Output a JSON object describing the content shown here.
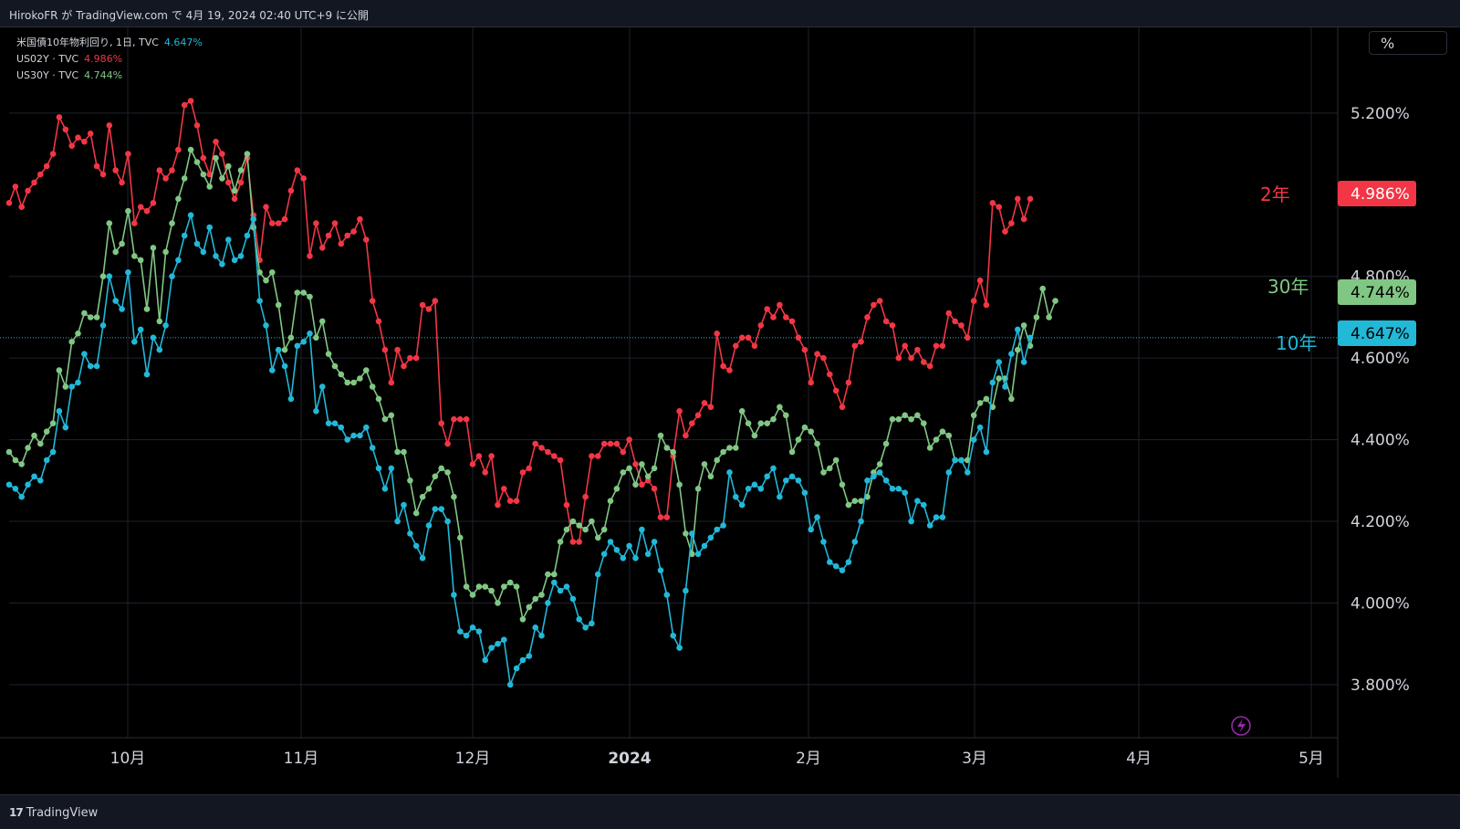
{
  "header": {
    "title": "HirokoFR が TradingView.com で 4月 19, 2024 02:40 UTC+9 に公開"
  },
  "footer": {
    "logo_mark": "17",
    "logo_text": "TradingView"
  },
  "legend": [
    {
      "name": "米国債10年物利回り, 1日, TVC",
      "value": "4.647%",
      "color": "#22b8d8"
    },
    {
      "name": "US02Y · TVC",
      "value": "4.986%",
      "color": "#f23645"
    },
    {
      "name": "US30Y · TVC",
      "value": "4.744%",
      "color": "#81c784"
    }
  ],
  "axis": {
    "unit_label": "%",
    "y_ticks": [
      "5.200%",
      "4.800%",
      "4.600%",
      "4.400%",
      "4.200%",
      "4.000%",
      "3.800%"
    ],
    "x_ticks": [
      "10月",
      "11月",
      "12月",
      "2024",
      "2月",
      "3月",
      "4月",
      "5月"
    ]
  },
  "chart_data": {
    "type": "line",
    "ylabel": "%",
    "ylim": [
      3.67,
      5.41
    ],
    "x_tick_labels": [
      "10月",
      "11月",
      "12月",
      "2024",
      "2月",
      "3月",
      "4月",
      "5月"
    ],
    "series": [
      {
        "name": "US02Y · TVC",
        "chart_label": "2年",
        "last_value": "4.986%",
        "color": "#f23645",
        "values": [
          4.98,
          5.02,
          4.97,
          5.01,
          5.03,
          5.05,
          5.07,
          5.1,
          5.19,
          5.16,
          5.12,
          5.14,
          5.13,
          5.15,
          5.07,
          5.05,
          5.17,
          5.06,
          5.03,
          5.1,
          4.93,
          4.97,
          4.96,
          4.98,
          5.06,
          5.04,
          5.06,
          5.11,
          5.22,
          5.23,
          5.17,
          5.09,
          5.05,
          5.13,
          5.1,
          5.03,
          4.99,
          5.03,
          5.09,
          4.95,
          4.84,
          4.97,
          4.93,
          4.93,
          4.94,
          5.01,
          5.06,
          5.04,
          4.85,
          4.93,
          4.87,
          4.9,
          4.93,
          4.88,
          4.9,
          4.91,
          4.94,
          4.89,
          4.74,
          4.69,
          4.62,
          4.54,
          4.62,
          4.58,
          4.6,
          4.6,
          4.73,
          4.72,
          4.74,
          4.44,
          4.39,
          4.45,
          4.45,
          4.45,
          4.34,
          4.36,
          4.32,
          4.36,
          4.24,
          4.28,
          4.25,
          4.25,
          4.32,
          4.33,
          4.39,
          4.38,
          4.37,
          4.36,
          4.35,
          4.24,
          4.15,
          4.15,
          4.26,
          4.36,
          4.36,
          4.39,
          4.39,
          4.39,
          4.37,
          4.4,
          4.34,
          4.29,
          4.3,
          4.28,
          4.21,
          4.21,
          4.36,
          4.47,
          4.41,
          4.44,
          4.46,
          4.49,
          4.48,
          4.66,
          4.58,
          4.57,
          4.63,
          4.65,
          4.65,
          4.63,
          4.68,
          4.72,
          4.7,
          4.73,
          4.7,
          4.69,
          4.65,
          4.62,
          4.54,
          4.61,
          4.6,
          4.56,
          4.52,
          4.48,
          4.54,
          4.63,
          4.64,
          4.7,
          4.73,
          4.74,
          4.69,
          4.68,
          4.6,
          4.63,
          4.6,
          4.62,
          4.59,
          4.58,
          4.63,
          4.63,
          4.71,
          4.69,
          4.68,
          4.65,
          4.74,
          4.79,
          4.73,
          4.98,
          4.97,
          4.91,
          4.93,
          4.99,
          4.94,
          4.99
        ]
      },
      {
        "name": "US30Y · TVC",
        "chart_label": "30年",
        "last_value": "4.744%",
        "color": "#81c784",
        "values": [
          4.37,
          4.35,
          4.34,
          4.38,
          4.41,
          4.39,
          4.42,
          4.44,
          4.57,
          4.53,
          4.64,
          4.66,
          4.71,
          4.7,
          4.7,
          4.8,
          4.93,
          4.86,
          4.88,
          4.96,
          4.85,
          4.84,
          4.72,
          4.87,
          4.69,
          4.86,
          4.93,
          4.99,
          5.04,
          5.11,
          5.08,
          5.05,
          5.02,
          5.09,
          5.04,
          5.07,
          5.01,
          5.06,
          5.1,
          4.92,
          4.81,
          4.79,
          4.81,
          4.73,
          4.62,
          4.65,
          4.76,
          4.76,
          4.75,
          4.65,
          4.69,
          4.61,
          4.58,
          4.56,
          4.54,
          4.54,
          4.55,
          4.57,
          4.53,
          4.5,
          4.45,
          4.46,
          4.37,
          4.37,
          4.3,
          4.22,
          4.26,
          4.28,
          4.31,
          4.33,
          4.32,
          4.26,
          4.16,
          4.04,
          4.02,
          4.04,
          4.04,
          4.03,
          4.0,
          4.04,
          4.05,
          4.04,
          3.96,
          3.99,
          4.01,
          4.02,
          4.07,
          4.07,
          4.15,
          4.18,
          4.2,
          4.19,
          4.18,
          4.2,
          4.16,
          4.18,
          4.25,
          4.28,
          4.32,
          4.33,
          4.29,
          4.34,
          4.31,
          4.33,
          4.41,
          4.38,
          4.37,
          4.29,
          4.17,
          4.12,
          4.28,
          4.34,
          4.31,
          4.35,
          4.37,
          4.38,
          4.38,
          4.47,
          4.44,
          4.41,
          4.44,
          4.44,
          4.45,
          4.48,
          4.46,
          4.37,
          4.4,
          4.43,
          4.42,
          4.39,
          4.32,
          4.33,
          4.35,
          4.29,
          4.24,
          4.25,
          4.25,
          4.26,
          4.32,
          4.34,
          4.39,
          4.45,
          4.45,
          4.46,
          4.45,
          4.46,
          4.44,
          4.38,
          4.4,
          4.42,
          4.41,
          4.35,
          4.35,
          4.35,
          4.46,
          4.49,
          4.5,
          4.48,
          4.55,
          4.55,
          4.5,
          4.62,
          4.68,
          4.63,
          4.7,
          4.77,
          4.7,
          4.74
        ]
      },
      {
        "name": "米国債10年物利回り, 1日, TVC",
        "chart_label": "10年",
        "last_value": "4.647%",
        "color": "#22b8d8",
        "values": [
          4.29,
          4.28,
          4.26,
          4.29,
          4.31,
          4.3,
          4.35,
          4.37,
          4.47,
          4.43,
          4.53,
          4.54,
          4.61,
          4.58,
          4.58,
          4.68,
          4.8,
          4.74,
          4.72,
          4.81,
          4.64,
          4.67,
          4.56,
          4.65,
          4.62,
          4.68,
          4.8,
          4.84,
          4.9,
          4.95,
          4.88,
          4.86,
          4.92,
          4.85,
          4.83,
          4.89,
          4.84,
          4.85,
          4.9,
          4.94,
          4.74,
          4.68,
          4.57,
          4.62,
          4.58,
          4.5,
          4.63,
          4.64,
          4.66,
          4.47,
          4.53,
          4.44,
          4.44,
          4.43,
          4.4,
          4.41,
          4.41,
          4.43,
          4.38,
          4.33,
          4.28,
          4.33,
          4.2,
          4.24,
          4.17,
          4.14,
          4.11,
          4.19,
          4.23,
          4.23,
          4.2,
          4.02,
          3.93,
          3.92,
          3.94,
          3.93,
          3.86,
          3.89,
          3.9,
          3.91,
          3.8,
          3.84,
          3.86,
          3.87,
          3.94,
          3.92,
          4.0,
          4.05,
          4.03,
          4.04,
          4.01,
          3.96,
          3.94,
          3.95,
          4.07,
          4.12,
          4.15,
          4.13,
          4.11,
          4.14,
          4.11,
          4.18,
          4.12,
          4.15,
          4.08,
          4.02,
          3.92,
          3.89,
          4.03,
          4.17,
          4.12,
          4.14,
          4.16,
          4.18,
          4.19,
          4.32,
          4.26,
          4.24,
          4.28,
          4.29,
          4.28,
          4.31,
          4.33,
          4.26,
          4.3,
          4.31,
          4.3,
          4.27,
          4.18,
          4.21,
          4.15,
          4.1,
          4.09,
          4.08,
          4.1,
          4.15,
          4.2,
          4.3,
          4.31,
          4.32,
          4.3,
          4.28,
          4.28,
          4.27,
          4.2,
          4.25,
          4.24,
          4.19,
          4.21,
          4.21,
          4.32,
          4.35,
          4.35,
          4.32,
          4.4,
          4.43,
          4.37,
          4.54,
          4.59,
          4.53,
          4.61,
          4.67,
          4.59,
          4.65
        ]
      }
    ]
  }
}
